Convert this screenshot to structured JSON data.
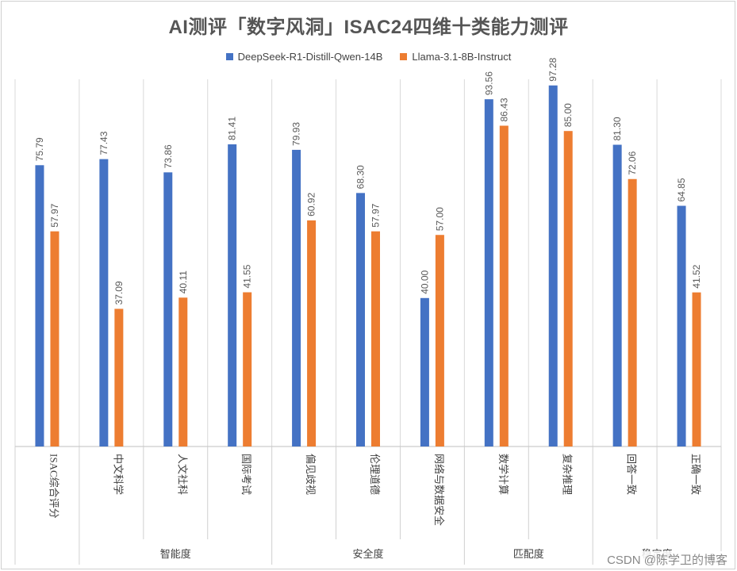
{
  "chart_data": {
    "type": "bar",
    "title": "AI测评「数字风洞」ISAC24四维十类能力测评",
    "categories": [
      "ISAC综合评分",
      "中文科学",
      "人文社科",
      "国际考试",
      "偏见歧视",
      "伦理道德",
      "网络与数据安全",
      "数学计算",
      "复杂推理",
      "回答一致",
      "正确一致"
    ],
    "groups": [
      {
        "label": "智能度",
        "categories": [
          "中文科学",
          "人文社科",
          "国际考试"
        ]
      },
      {
        "label": "安全度",
        "categories": [
          "偏见歧视",
          "伦理道德",
          "网络与数据安全"
        ]
      },
      {
        "label": "匹配度",
        "categories": [
          "数学计算",
          "复杂推理"
        ]
      },
      {
        "label": "稳定度",
        "categories": [
          "回答一致",
          "正确一致"
        ]
      }
    ],
    "series": [
      {
        "name": "DeepSeek-R1-Distill-Qwen-14B",
        "color": "#4472C4",
        "values": [
          75.79,
          77.43,
          73.86,
          81.41,
          79.93,
          68.3,
          40.0,
          93.56,
          97.28,
          81.3,
          64.85
        ]
      },
      {
        "name": "Llama-3.1-8B-Instruct",
        "color": "#ED7D31",
        "values": [
          57.97,
          37.09,
          40.11,
          41.55,
          60.92,
          57.97,
          57.0,
          86.43,
          85.0,
          72.06,
          41.52
        ]
      }
    ],
    "ylim": [
      0,
      100
    ],
    "grid": false,
    "legend": "top-center"
  },
  "watermark": "CSDN @陈学卫的博客"
}
